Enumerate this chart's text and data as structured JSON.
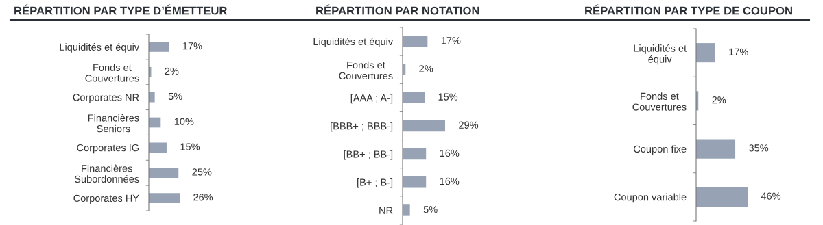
{
  "chart_data": [
    {
      "type": "bar",
      "orientation": "horizontal",
      "title": "RÉPARTITION PAR TYPE D’ÉMETTEUR",
      "categories": [
        "Liquidités et équiv",
        "Fonds et\nCouvertures",
        "Corporates NR",
        "Financières\nSeniors",
        "Corporates IG",
        "Financières\nSubordonnées",
        "Corporates HY"
      ],
      "values": [
        17,
        2,
        5,
        10,
        15,
        25,
        26
      ],
      "value_labels": [
        "17%",
        "2%",
        "5%",
        "10%",
        "15%",
        "25%",
        "26%"
      ],
      "color": "#97a3b5",
      "tick_labels": "y",
      "grid": false,
      "legend": false
    },
    {
      "type": "bar",
      "orientation": "horizontal",
      "title": "RÉPARTITION PAR NOTATION",
      "categories": [
        "Liquidités et équiv",
        "Fonds et\nCouvertures",
        "[AAA ; A-]",
        "[BBB+ ; BBB-]",
        "[BB+ ; BB-]",
        "[B+ ; B-]",
        "NR"
      ],
      "values": [
        17,
        2,
        15,
        29,
        16,
        16,
        5
      ],
      "value_labels": [
        "17%",
        "2%",
        "15%",
        "29%",
        "16%",
        "16%",
        "5%"
      ],
      "color": "#97a3b5",
      "tick_labels": "y",
      "grid": false,
      "legend": false
    },
    {
      "type": "bar",
      "orientation": "horizontal",
      "title": "RÉPARTITION PAR TYPE DE COUPON",
      "categories": [
        "Liquidités et\néquiv",
        "Fonds et\nCouvertures",
        "Coupon fixe",
        "Coupon variable"
      ],
      "values": [
        17,
        2,
        35,
        46
      ],
      "value_labels": [
        "17%",
        "2%",
        "35%",
        "46%"
      ],
      "color": "#97a3b5",
      "tick_labels": "y",
      "grid": false,
      "legend": false
    }
  ]
}
